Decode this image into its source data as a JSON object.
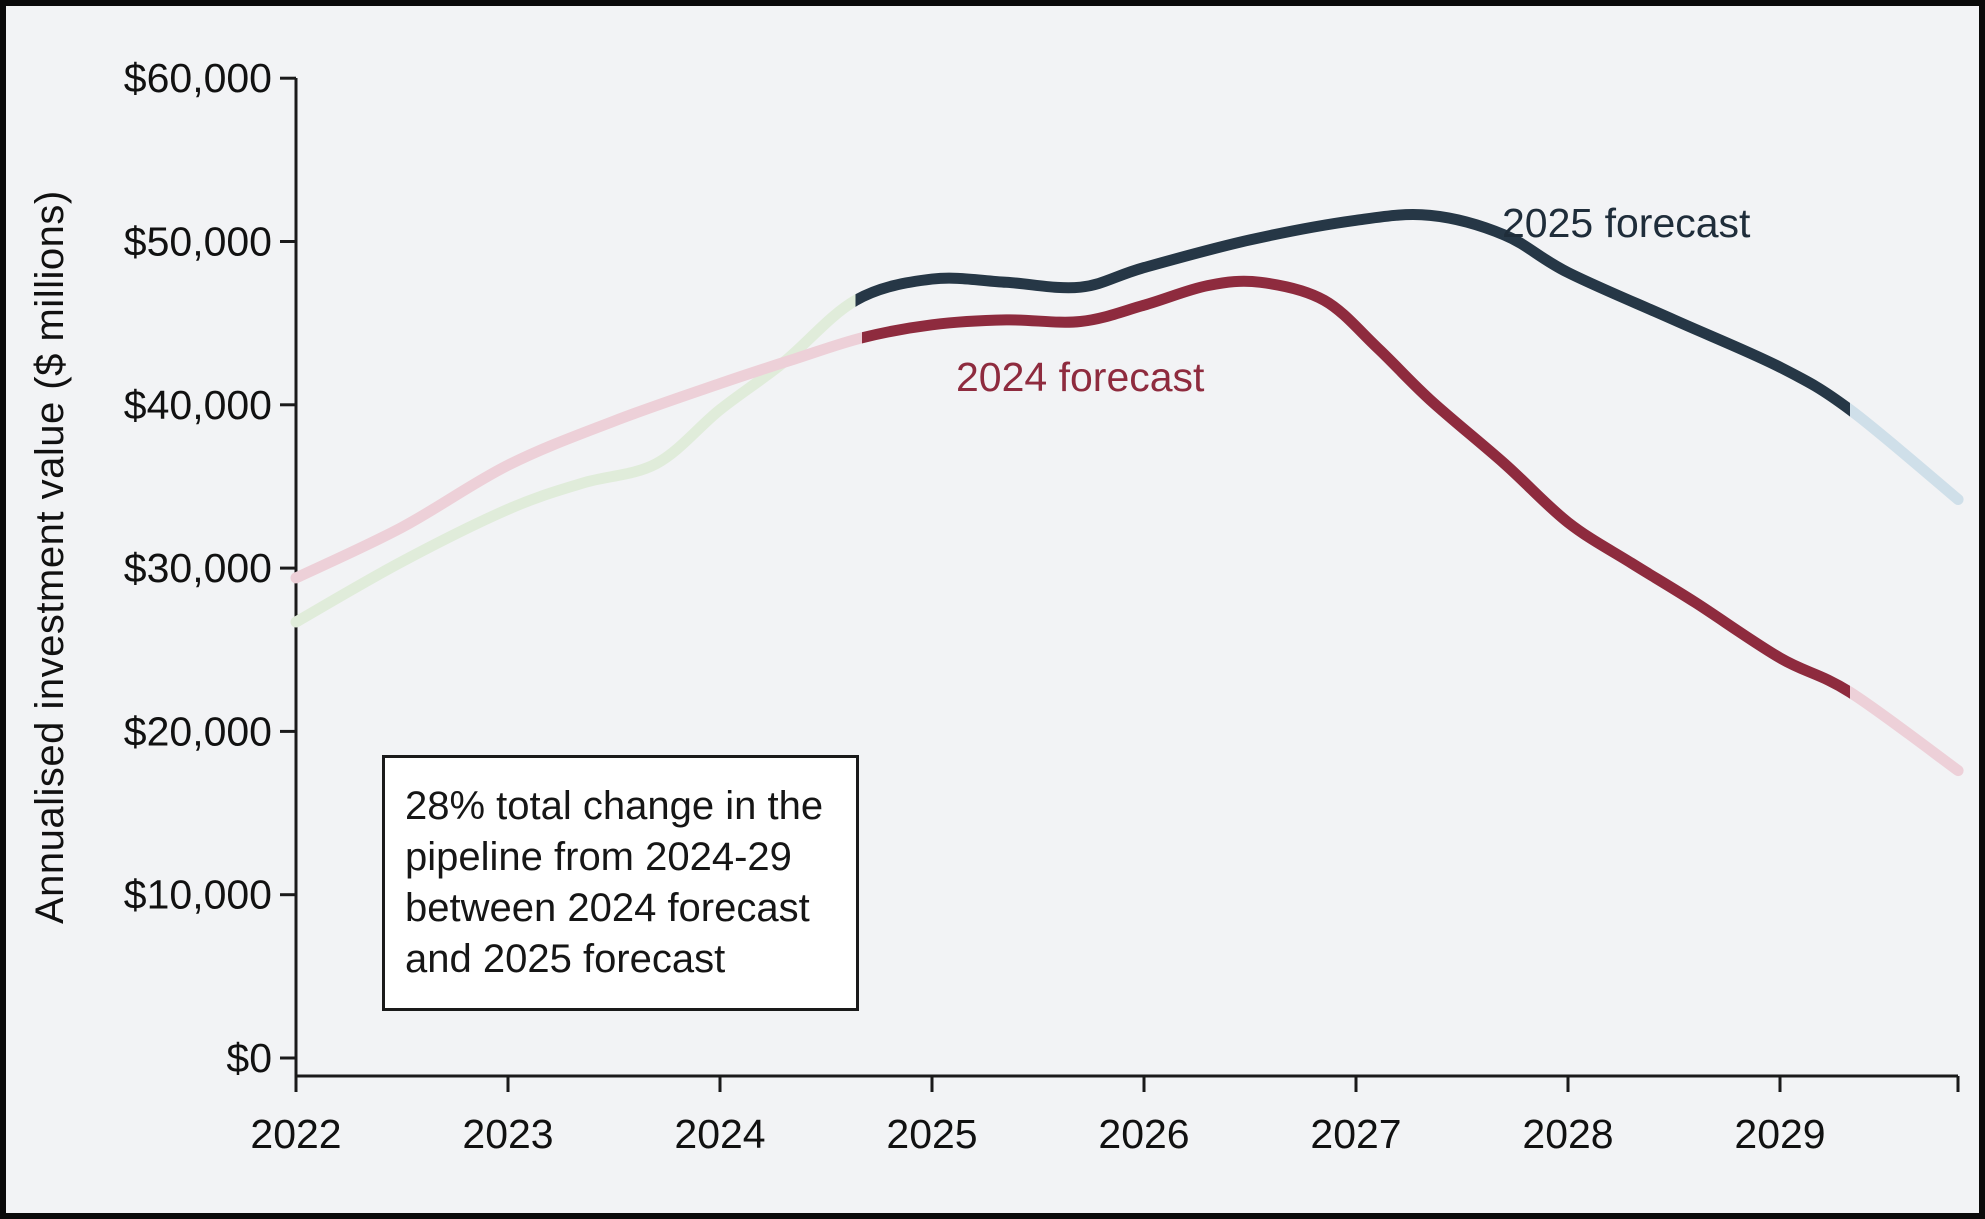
{
  "frame": {
    "background_color": "#f2f3f5",
    "border_color": "#0a0a0a",
    "axis_color": "#1a1a1a",
    "text_color": "#111111"
  },
  "chart_data": {
    "type": "line",
    "title": "",
    "xlabel": "",
    "ylabel": "Annualised investment value ($ millions)",
    "xlim": [
      2022,
      2029.84
    ],
    "ylim": [
      0,
      60000
    ],
    "grid": false,
    "legend_position": "inline-labels",
    "x_ticks": [
      {
        "value": 2022,
        "label": "2022"
      },
      {
        "value": 2023,
        "label": "2023"
      },
      {
        "value": 2024,
        "label": "2024"
      },
      {
        "value": 2025,
        "label": "2025"
      },
      {
        "value": 2026,
        "label": "2026"
      },
      {
        "value": 2027,
        "label": "2027"
      },
      {
        "value": 2028,
        "label": "2028"
      },
      {
        "value": 2029,
        "label": "2029"
      }
    ],
    "y_ticks": [
      {
        "value": 0,
        "label": "$0"
      },
      {
        "value": 10000,
        "label": "$10,000"
      },
      {
        "value": 20000,
        "label": "$20,000"
      },
      {
        "value": 30000,
        "label": "$30,000"
      },
      {
        "value": 40000,
        "label": "$40,000"
      },
      {
        "value": 50000,
        "label": "$50,000"
      },
      {
        "value": 60000,
        "label": "$60,000"
      }
    ],
    "series": [
      {
        "name": "2025-forecast",
        "label": "2025 forecast",
        "label_color": "#1f2d3a",
        "history_color": "#e0ecda",
        "forecast_color": "#263746",
        "tail_color": "#cfdfe9",
        "forecast_start": 2024.64,
        "tail_start": 2029.33,
        "points": [
          [
            2022.0,
            26700
          ],
          [
            2022.5,
            30400
          ],
          [
            2023.0,
            33600
          ],
          [
            2023.35,
            35200
          ],
          [
            2023.7,
            36400
          ],
          [
            2024.0,
            39700
          ],
          [
            2024.3,
            42600
          ],
          [
            2024.64,
            46400
          ],
          [
            2025.0,
            47700
          ],
          [
            2025.35,
            47500
          ],
          [
            2025.7,
            47200
          ],
          [
            2026.0,
            48400
          ],
          [
            2026.5,
            50100
          ],
          [
            2027.0,
            51300
          ],
          [
            2027.35,
            51600
          ],
          [
            2027.7,
            50400
          ],
          [
            2028.0,
            48100
          ],
          [
            2028.5,
            45200
          ],
          [
            2029.0,
            42300
          ],
          [
            2029.33,
            39700
          ],
          [
            2029.84,
            34200
          ]
        ]
      },
      {
        "name": "2024-forecast",
        "label": "2024 forecast",
        "label_color": "#8e2b3e",
        "history_color": "#edd0d8",
        "forecast_color": "#8e2b3e",
        "tail_color": "#edd0d8",
        "forecast_start": 2024.67,
        "tail_start": 2029.33,
        "points": [
          [
            2022.0,
            29400
          ],
          [
            2022.5,
            32500
          ],
          [
            2023.0,
            36300
          ],
          [
            2023.5,
            39000
          ],
          [
            2024.0,
            41300
          ],
          [
            2024.35,
            42800
          ],
          [
            2024.67,
            44100
          ],
          [
            2025.0,
            44900
          ],
          [
            2025.35,
            45200
          ],
          [
            2025.7,
            45100
          ],
          [
            2026.0,
            46100
          ],
          [
            2026.3,
            47300
          ],
          [
            2026.55,
            47500
          ],
          [
            2026.85,
            46400
          ],
          [
            2027.1,
            43500
          ],
          [
            2027.35,
            40300
          ],
          [
            2027.7,
            36400
          ],
          [
            2028.0,
            32800
          ],
          [
            2028.3,
            30300
          ],
          [
            2028.6,
            27900
          ],
          [
            2029.0,
            24500
          ],
          [
            2029.33,
            22400
          ],
          [
            2029.84,
            17600
          ]
        ]
      }
    ],
    "annotation": "28% total change in the\npipeline from 2024-29\nbetween 2024 forecast\nand 2025 forecast"
  }
}
